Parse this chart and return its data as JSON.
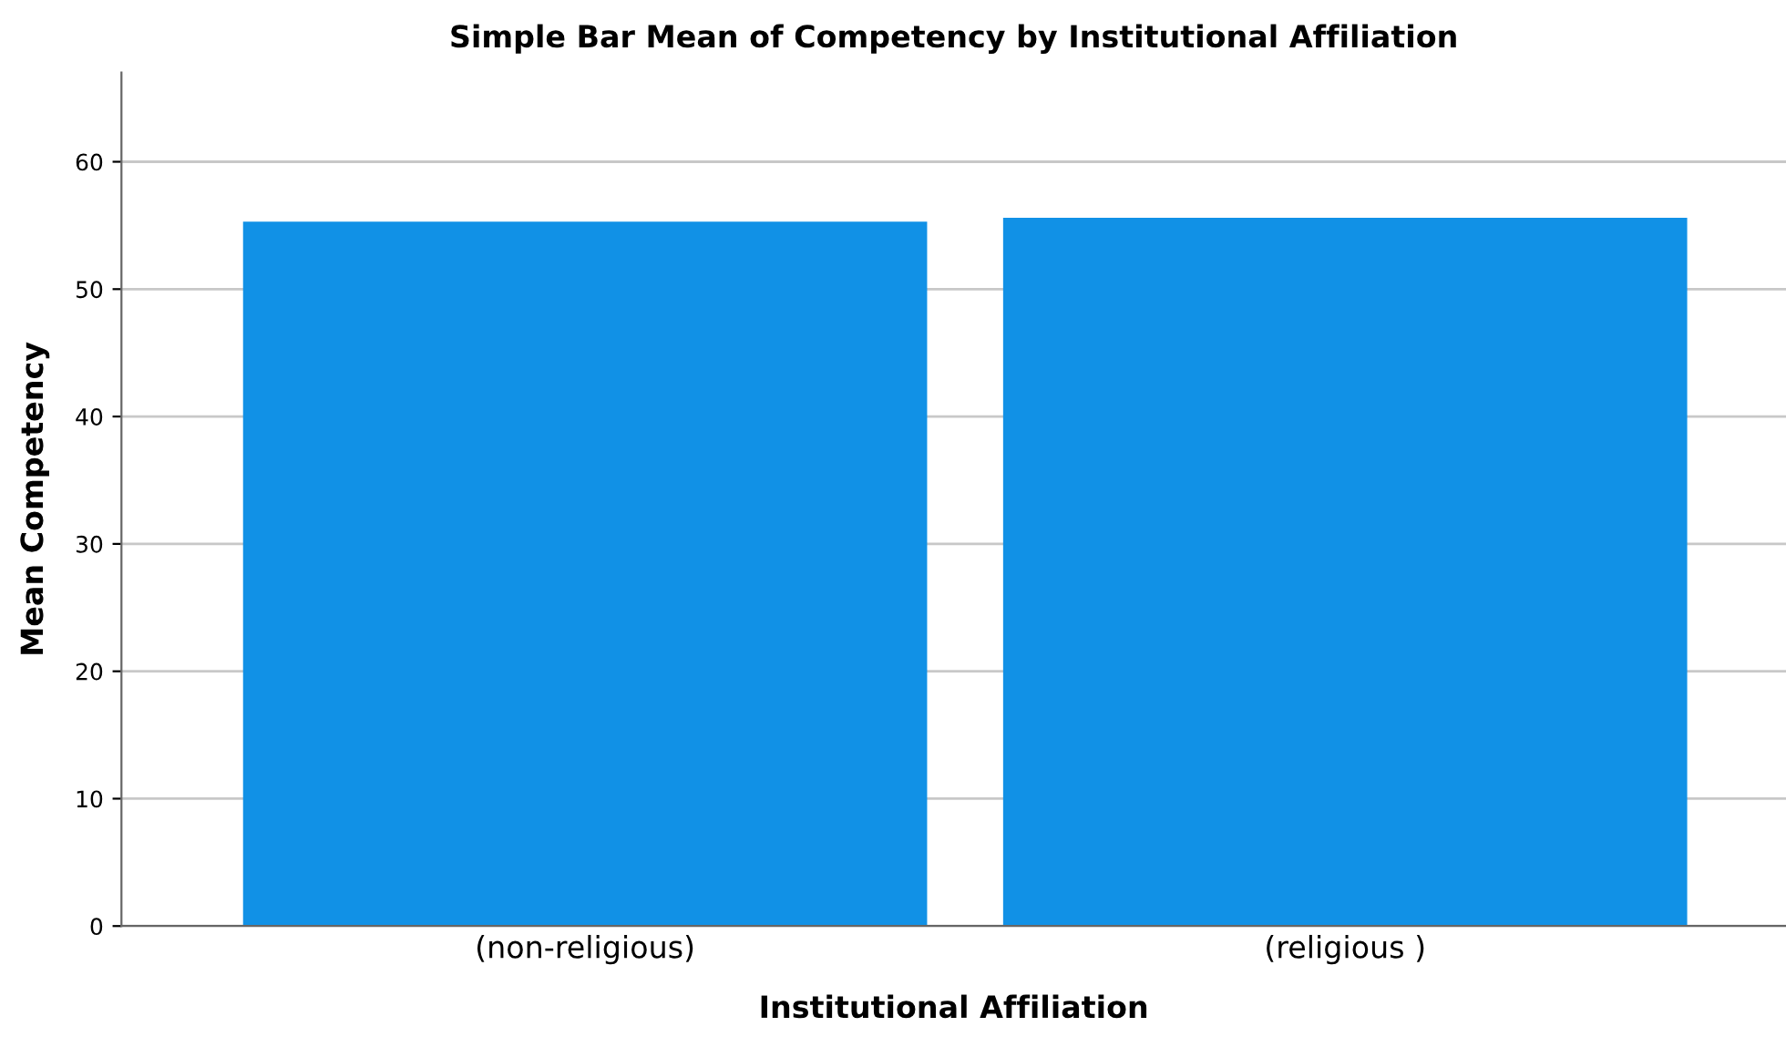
{
  "chart_data": {
    "type": "bar",
    "title": "Simple Bar Mean of Competency by Institutional Affiliation",
    "xlabel": "Institutional Affiliation",
    "ylabel": "Mean Competency",
    "categories": [
      "(non-religious)",
      "(religious )"
    ],
    "values": [
      55.3,
      55.6
    ],
    "color": "#1191e6",
    "ylim": [
      0,
      67
    ],
    "yticks": [
      0,
      10,
      20,
      30,
      40,
      50,
      60
    ],
    "grid": "y",
    "legend": false
  }
}
